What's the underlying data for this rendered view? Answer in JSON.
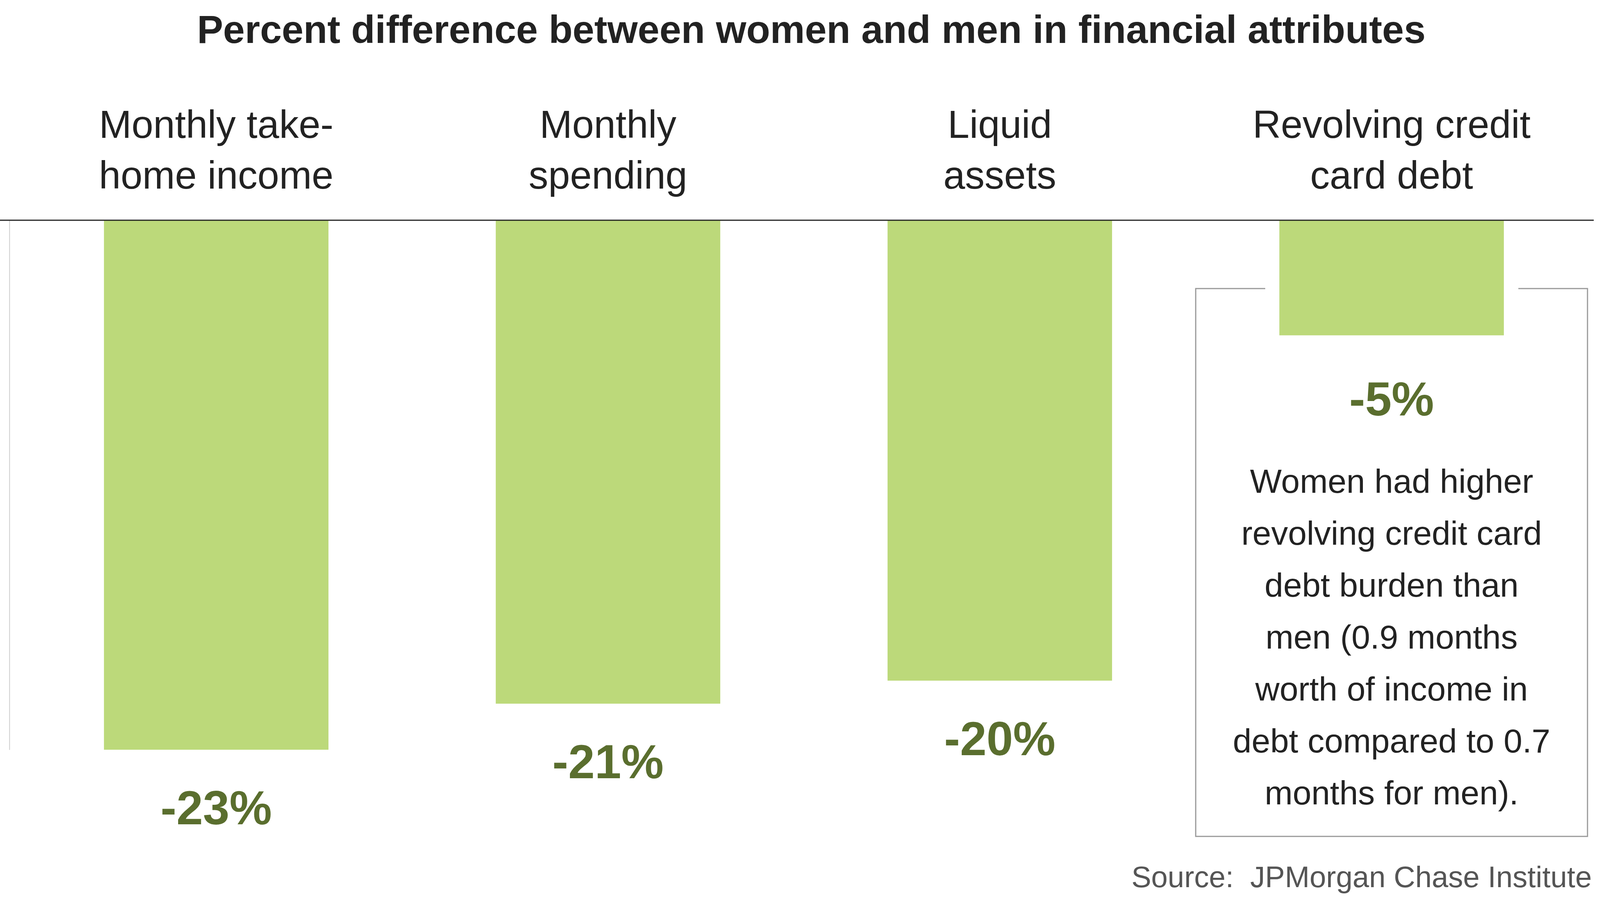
{
  "chart_data": {
    "type": "bar",
    "title": "Percent difference between women and men in financial attributes",
    "categories": [
      "Monthly take-\nhome income",
      "Monthly\nspending",
      "Liquid\nassets",
      "Revolving credit\ncard debt"
    ],
    "values": [
      -23,
      -21,
      -20,
      -5
    ],
    "value_labels": [
      "-23%",
      "-21%",
      "-20%",
      "-5%"
    ],
    "data_labels": true,
    "color": "#bcd97a",
    "ylim": [
      -23,
      0
    ],
    "tick_labels": "x",
    "annotation": [
      "Women had higher",
      "revolving credit card",
      "debt burden than",
      "men (0.9 months",
      "worth of income in",
      "debt compared to 0.7",
      "months for men)."
    ],
    "source": "Source:  JPMorgan Chase Institute"
  }
}
